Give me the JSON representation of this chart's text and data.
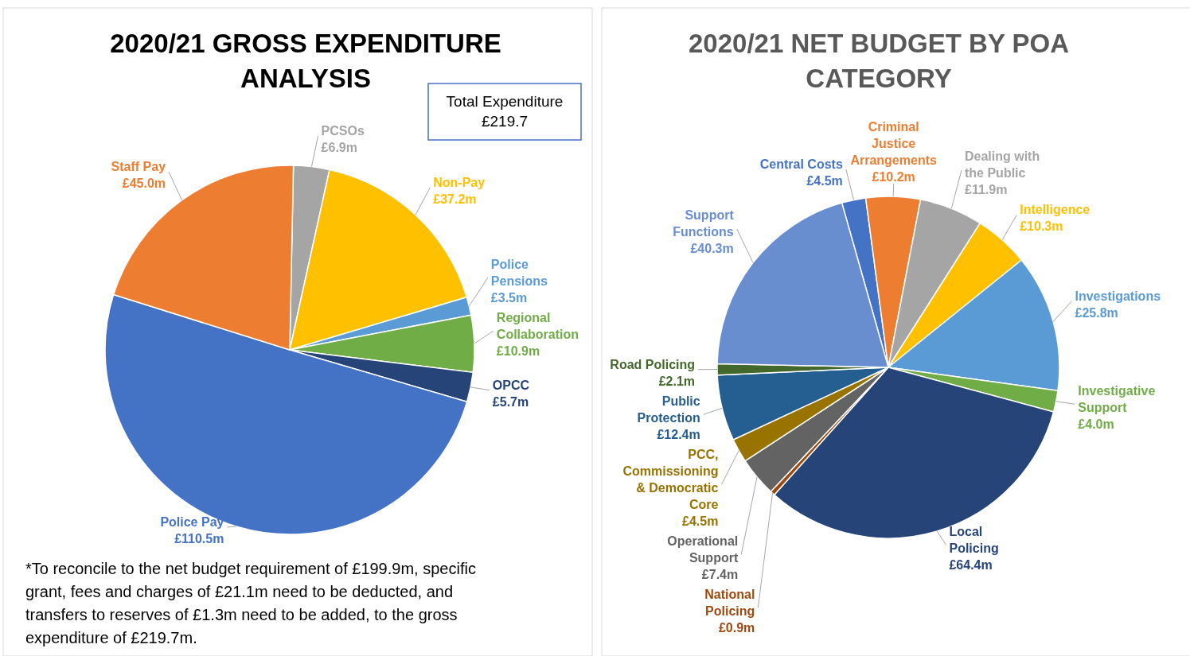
{
  "chart_data": [
    {
      "type": "pie",
      "title": "2020/21 GROSS EXPENDITURE ANALYSIS",
      "categories": [
        "PCSOs",
        "Non-Pay",
        "Police Pensions",
        "Regional Collaboration",
        "OPCC",
        "Police Pay",
        "Staff Pay"
      ],
      "values": [
        6.9,
        37.2,
        3.5,
        10.9,
        5.7,
        110.5,
        45.0
      ],
      "value_labels": [
        "£6.9m",
        "£37.2m",
        "£3.5m",
        "£10.9m",
        "£5.7m",
        "£110.5m",
        "£45.0m"
      ],
      "colors": [
        "#a5a5a5",
        "#ffc000",
        "#5b9bd5",
        "#70ad47",
        "#264478",
        "#4472c4",
        "#ed7d31"
      ],
      "legend": false,
      "annotations": [
        "Total Expenditure £219.7",
        "*To reconcile to the net budget requirement of £199.9m, specific grant, fees and charges of £21.1m need to be deducted, and transfers to reserves of £1.3m need to be added, to the gross expenditure of £219.7m."
      ]
    },
    {
      "type": "pie",
      "title": "2020/21 NET BUDGET BY POA CATEGORY",
      "categories": [
        "Central Costs",
        "Criminal Justice Arrangements",
        "Dealing with the Public",
        "Intelligence",
        "Investigations",
        "Investigative Support",
        "Local Policing",
        "National Policing",
        "Operational Support",
        "PCC, Commissioning & Democratic Core",
        "Public Protection",
        "Road Policing",
        "Support Functions"
      ],
      "values": [
        4.5,
        10.2,
        11.9,
        10.3,
        25.8,
        4.0,
        64.4,
        0.9,
        7.4,
        4.5,
        12.4,
        2.1,
        40.3
      ],
      "value_labels": [
        "£4.5m",
        "£10.2m",
        "£11.9m",
        "£10.3m",
        "£25.8m",
        "£4.0m",
        "£64.4m",
        "£0.9m",
        "£7.4m",
        "£4.5m",
        "£12.4m",
        "£2.1m",
        "£40.3m"
      ],
      "colors": [
        "#4472c4",
        "#ed7d31",
        "#a5a5a5",
        "#ffc000",
        "#5b9bd5",
        "#70ad47",
        "#264478",
        "#9e480e",
        "#636363",
        "#997300",
        "#255e91",
        "#43682b",
        "#698ed0"
      ],
      "legend": false
    }
  ]
}
